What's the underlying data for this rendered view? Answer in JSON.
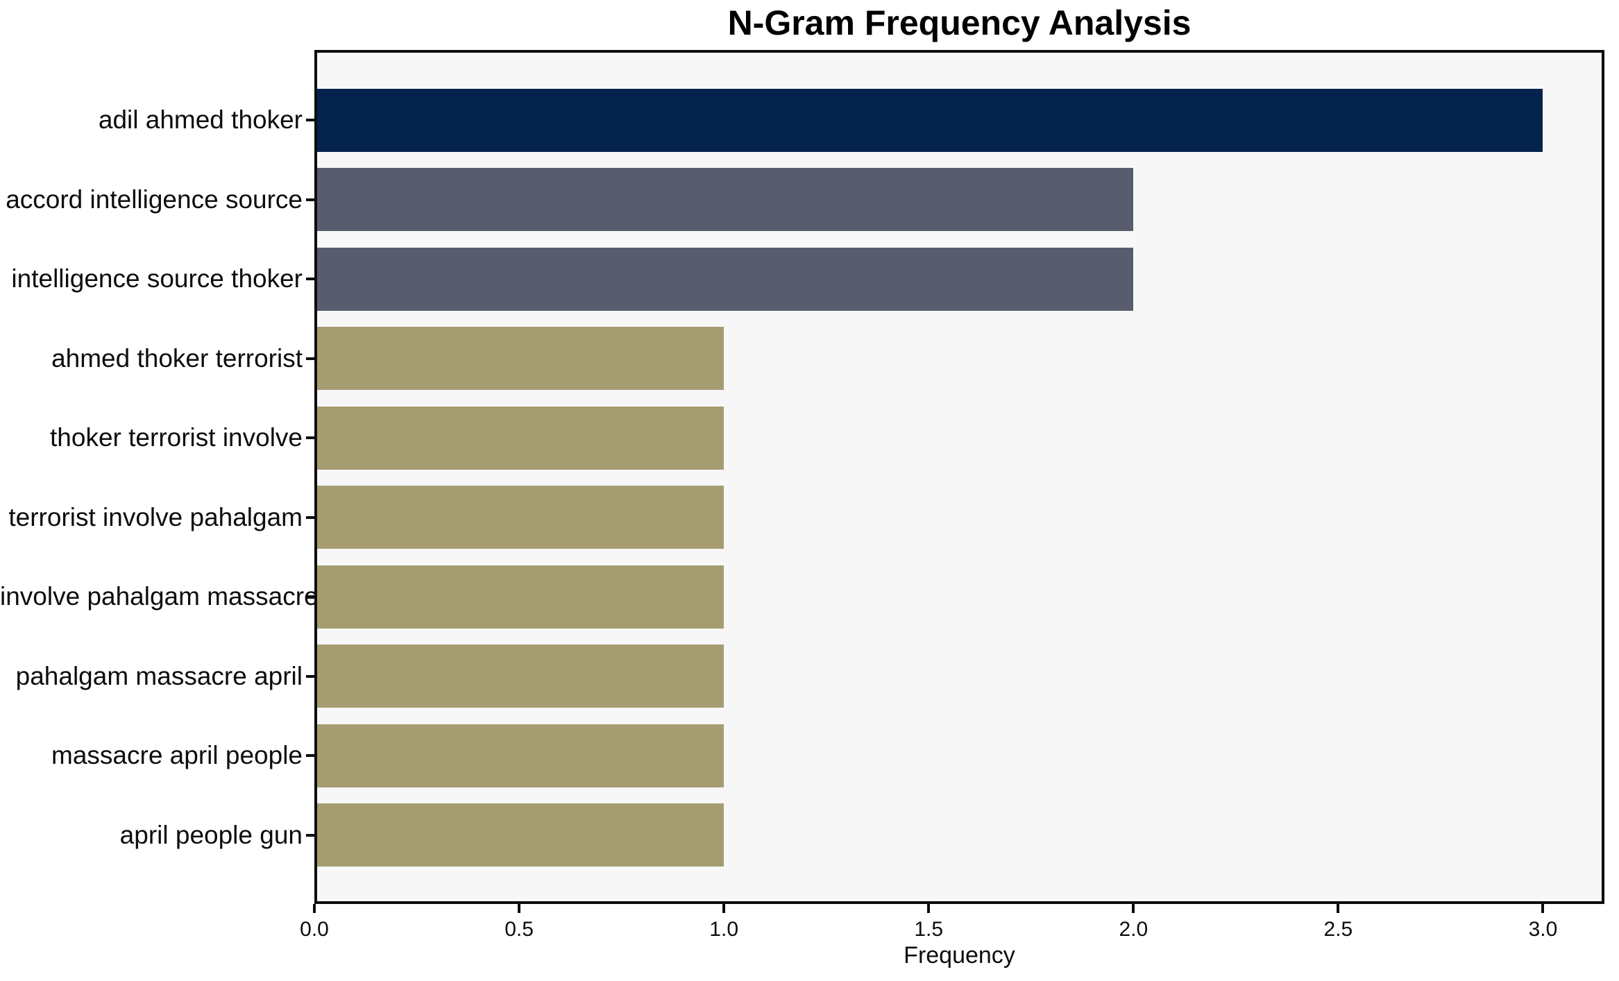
{
  "chart_data": {
    "type": "bar",
    "orientation": "horizontal",
    "title": "N-Gram Frequency Analysis",
    "xlabel": "Frequency",
    "ylabel": "",
    "categories": [
      "adil ahmed thoker",
      "accord intelligence source",
      "intelligence source thoker",
      "ahmed thoker terrorist",
      "thoker terrorist involve",
      "terrorist involve pahalgam",
      "involve pahalgam massacre",
      "pahalgam massacre april",
      "massacre april people",
      "april people gun"
    ],
    "values": [
      3,
      2,
      2,
      1,
      1,
      1,
      1,
      1,
      1,
      1
    ],
    "bar_colors": [
      "#03234c",
      "#585d6e",
      "#585d6e",
      "#a69c72",
      "#a69c72",
      "#a69c72",
      "#a69c72",
      "#a69c72",
      "#a69c72",
      "#a69c72"
    ],
    "xticks": [
      0.0,
      0.5,
      1.0,
      1.5,
      2.0,
      2.5,
      3.0
    ],
    "xtick_labels": [
      "0.0",
      "0.5",
      "1.0",
      "1.5",
      "2.0",
      "2.5",
      "3.0"
    ],
    "xlim": [
      0,
      3.15
    ],
    "grid": false,
    "legend": null,
    "plot_background": "#f7f7f7",
    "axis_color": "#0d0d0d"
  }
}
